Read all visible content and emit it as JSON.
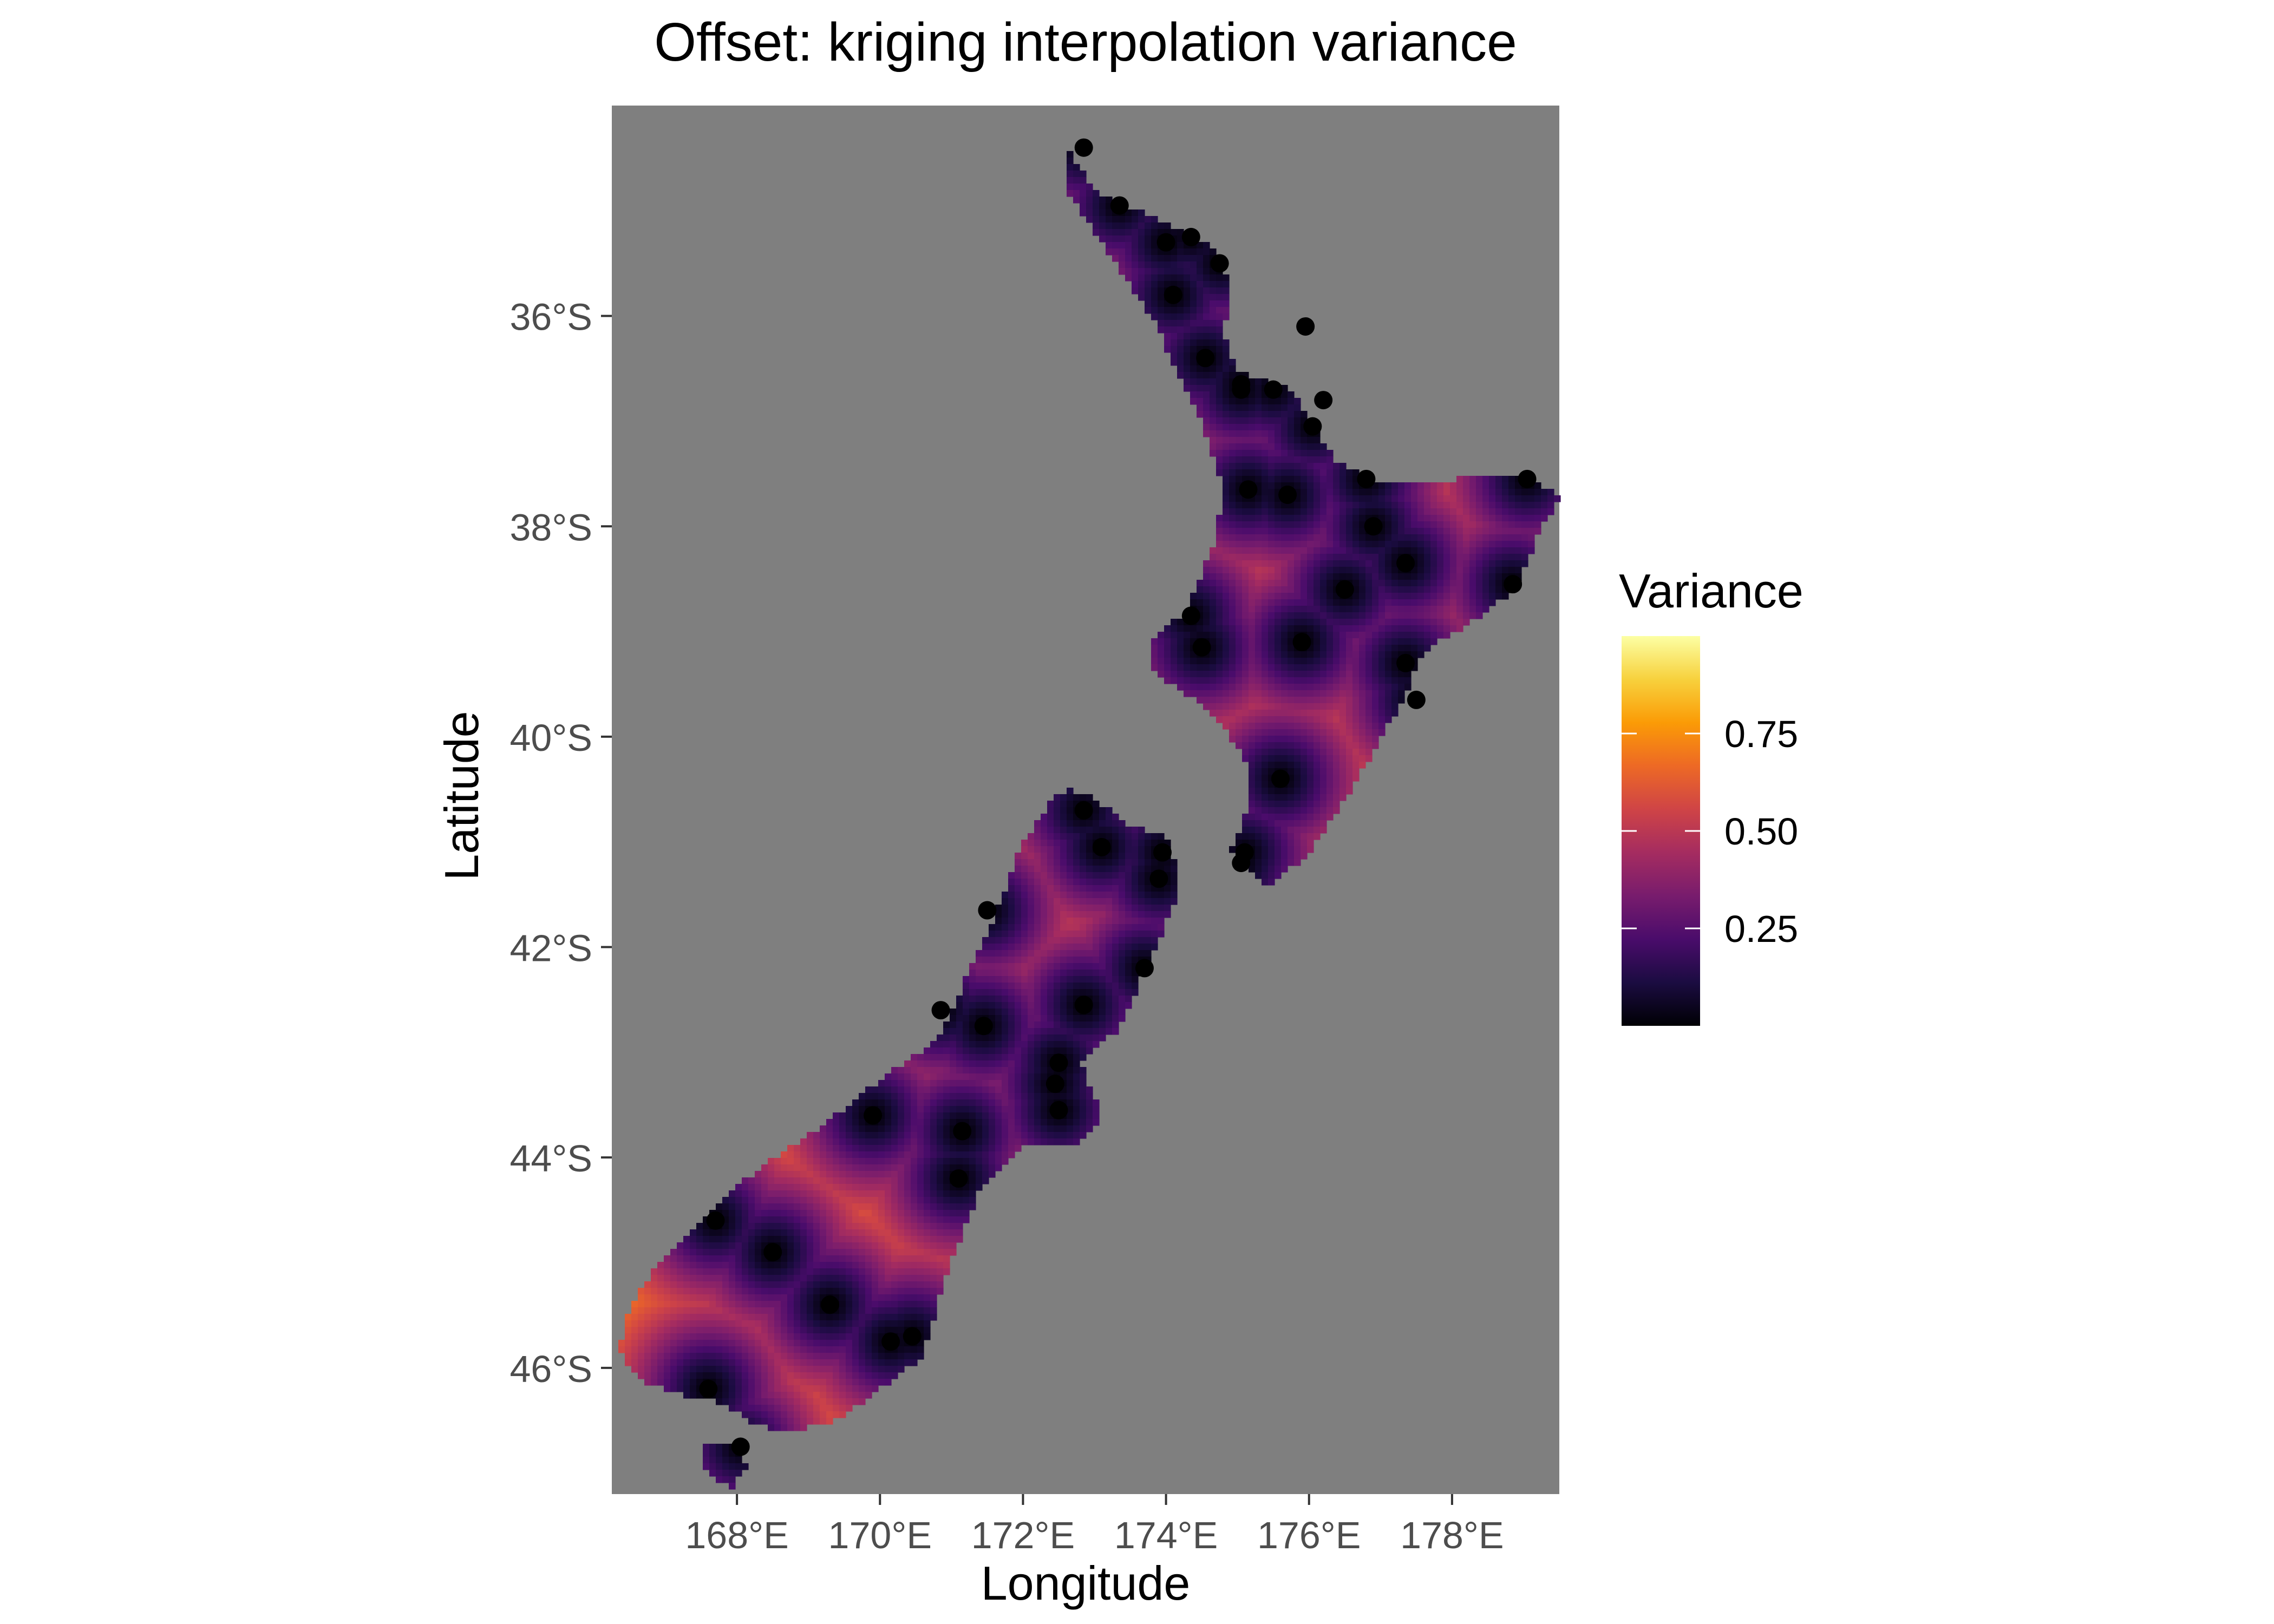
{
  "colors": {
    "background": "#ffffff",
    "panel": "#7f7f7f",
    "point": "#000000",
    "tick_text": "#4d4d4d",
    "text": "#000000",
    "palette": [
      "#000004",
      "#1b0c41",
      "#4a0c6b",
      "#781c6d",
      "#a52c60",
      "#cf4446",
      "#ed6925",
      "#fb9b06",
      "#f7d13d",
      "#fcffa4"
    ]
  },
  "chart_data": {
    "type": "heatmap",
    "title": "Offset: kriging interpolation variance",
    "xlabel": "Longitude",
    "ylabel": "Latitude",
    "xlim": [
      166.25,
      179.5
    ],
    "ylim": [
      -47.2,
      -34.0
    ],
    "xticks": [
      168,
      170,
      172,
      174,
      176,
      178
    ],
    "xtick_labels": [
      "168°E",
      "170°E",
      "172°E",
      "174°E",
      "176°E",
      "178°E"
    ],
    "yticks": [
      -36,
      -38,
      -40,
      -42,
      -44,
      -46
    ],
    "ytick_labels": [
      "36°S",
      "38°S",
      "40°S",
      "42°S",
      "44°S",
      "46°S"
    ],
    "grid": false,
    "legend": {
      "title": "Variance",
      "position": "right",
      "range": [
        0,
        1
      ],
      "breaks": [
        0.25,
        0.5,
        0.75
      ],
      "labels": [
        "0.25",
        "0.50",
        "0.75"
      ],
      "palette": "inferno"
    },
    "stations": [
      [
        172.85,
        -34.4
      ],
      [
        173.35,
        -34.95
      ],
      [
        174.0,
        -35.3
      ],
      [
        174.35,
        -35.25
      ],
      [
        174.75,
        -35.5
      ],
      [
        174.1,
        -35.8
      ],
      [
        175.95,
        -36.1
      ],
      [
        174.55,
        -36.4
      ],
      [
        175.05,
        -36.7
      ],
      [
        175.05,
        -36.65
      ],
      [
        175.5,
        -36.7
      ],
      [
        176.2,
        -36.8
      ],
      [
        176.05,
        -37.05
      ],
      [
        175.15,
        -37.65
      ],
      [
        175.7,
        -37.7
      ],
      [
        176.8,
        -37.55
      ],
      [
        179.05,
        -37.55
      ],
      [
        176.9,
        -38.0
      ],
      [
        177.35,
        -38.35
      ],
      [
        176.5,
        -38.6
      ],
      [
        178.85,
        -38.55
      ],
      [
        174.35,
        -38.85
      ],
      [
        174.5,
        -39.15
      ],
      [
        175.9,
        -39.1
      ],
      [
        177.35,
        -39.3
      ],
      [
        177.5,
        -39.65
      ],
      [
        175.6,
        -40.4
      ],
      [
        175.1,
        -41.1
      ],
      [
        175.05,
        -41.2
      ],
      [
        172.85,
        -40.7
      ],
      [
        173.1,
        -41.05
      ],
      [
        173.95,
        -41.1
      ],
      [
        173.9,
        -41.35
      ],
      [
        171.5,
        -41.65
      ],
      [
        173.7,
        -42.2
      ],
      [
        170.85,
        -42.6
      ],
      [
        172.85,
        -42.55
      ],
      [
        171.45,
        -42.75
      ],
      [
        172.5,
        -43.1
      ],
      [
        172.45,
        -43.3
      ],
      [
        172.5,
        -43.55
      ],
      [
        169.9,
        -43.6
      ],
      [
        171.15,
        -43.75
      ],
      [
        171.1,
        -44.2
      ],
      [
        167.7,
        -44.6
      ],
      [
        168.5,
        -44.9
      ],
      [
        169.3,
        -45.4
      ],
      [
        170.45,
        -45.7
      ],
      [
        170.15,
        -45.75
      ],
      [
        167.6,
        -46.2
      ],
      [
        168.05,
        -46.75
      ]
    ]
  }
}
